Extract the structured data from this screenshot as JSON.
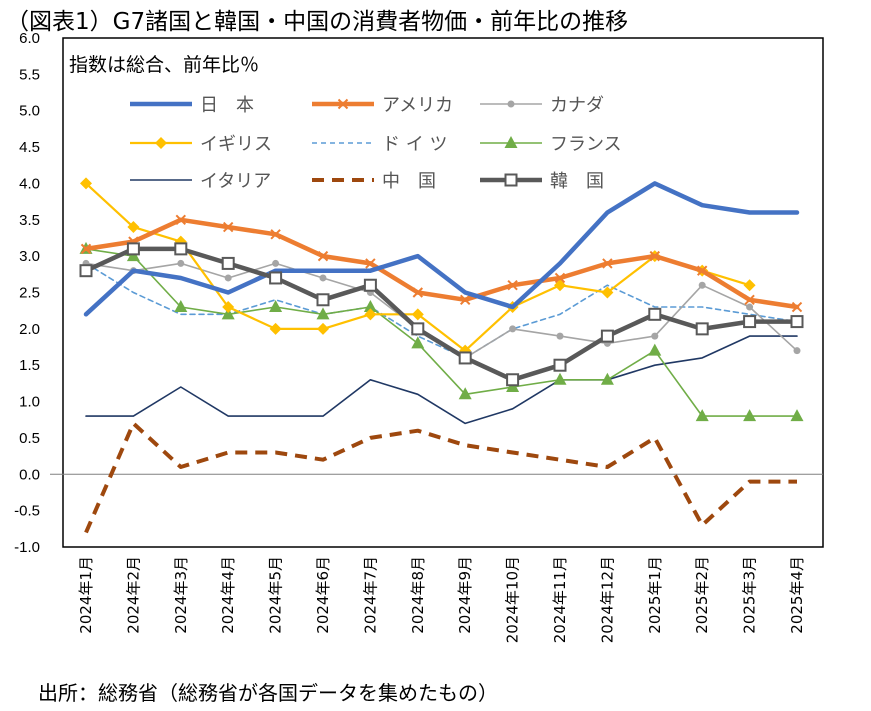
{
  "chart_data": {
    "type": "line",
    "title": "（図表1）G7諸国と韓国・中国の消費者物価・前年比の推移",
    "subtitle": "指数は総合、前年比％",
    "source": "出所：総務省（総務省が各国データを集めたもの）",
    "ylim": [
      -1.0,
      6.0
    ],
    "yticks": [
      "6.0",
      "5.5",
      "5.0",
      "4.5",
      "4.0",
      "3.5",
      "3.0",
      "2.5",
      "2.0",
      "1.5",
      "1.0",
      "0.5",
      "0.0",
      "-0.5",
      "-1.0"
    ],
    "categories": [
      "2024年1月",
      "2024年2月",
      "2024年3月",
      "2024年4月",
      "2024年5月",
      "2024年6月",
      "2024年7月",
      "2024年8月",
      "2024年9月",
      "2024年10月",
      "2024年11月",
      "2024年12月",
      "2025年1月",
      "2025年2月",
      "2025年3月",
      "2025年4月"
    ],
    "series": [
      {
        "name": "日　本",
        "color": "#4472C4",
        "style": "thick",
        "marker": "none",
        "values": [
          2.2,
          2.8,
          2.7,
          2.5,
          2.8,
          2.8,
          2.8,
          3.0,
          2.5,
          2.3,
          2.9,
          3.6,
          4.0,
          3.7,
          3.6,
          3.6
        ]
      },
      {
        "name": "アメリカ",
        "color": "#ED7D31",
        "style": "thick",
        "marker": "x",
        "values": [
          3.1,
          3.2,
          3.5,
          3.4,
          3.3,
          3.0,
          2.9,
          2.5,
          2.4,
          2.6,
          2.7,
          2.9,
          3.0,
          2.8,
          2.4,
          2.3
        ]
      },
      {
        "name": "カナダ",
        "color": "#A5A5A5",
        "style": "thin",
        "marker": "circle",
        "values": [
          2.9,
          2.8,
          2.9,
          2.7,
          2.9,
          2.7,
          2.5,
          2.0,
          1.6,
          2.0,
          1.9,
          1.8,
          1.9,
          2.6,
          2.3,
          1.7
        ]
      },
      {
        "name": "イギリス",
        "color": "#FFC000",
        "style": "medium",
        "marker": "diamond",
        "values": [
          4.0,
          3.4,
          3.2,
          2.3,
          2.0,
          2.0,
          2.2,
          2.2,
          1.7,
          2.3,
          2.6,
          2.5,
          3.0,
          2.8,
          2.6,
          null
        ]
      },
      {
        "name": "ド イ ツ",
        "color": "#5B9BD5",
        "style": "dashed",
        "marker": "none",
        "values": [
          2.9,
          2.5,
          2.2,
          2.2,
          2.4,
          2.2,
          2.3,
          1.9,
          1.6,
          2.0,
          2.2,
          2.6,
          2.3,
          2.3,
          2.2,
          2.1
        ]
      },
      {
        "name": "フランス",
        "color": "#70AD47",
        "style": "thin",
        "marker": "triangle",
        "values": [
          3.1,
          3.0,
          2.3,
          2.2,
          2.3,
          2.2,
          2.3,
          1.8,
          1.1,
          1.2,
          1.3,
          1.3,
          1.7,
          0.8,
          0.8,
          0.8
        ]
      },
      {
        "name": "イタリア",
        "color": "#203864",
        "style": "thin",
        "marker": "none",
        "values": [
          0.8,
          0.8,
          1.2,
          0.8,
          0.8,
          0.8,
          1.3,
          1.1,
          0.7,
          0.9,
          1.3,
          1.3,
          1.5,
          1.6,
          1.9,
          1.9
        ]
      },
      {
        "name": "中　国",
        "color": "#9E480E",
        "style": "thickdash",
        "marker": "none",
        "values": [
          -0.8,
          0.7,
          0.1,
          0.3,
          0.3,
          0.2,
          0.5,
          0.6,
          0.4,
          0.3,
          0.2,
          0.1,
          0.5,
          -0.7,
          -0.1,
          -0.1
        ]
      },
      {
        "name": "韓　国",
        "color": "#595959",
        "style": "thick",
        "marker": "square",
        "values": [
          2.8,
          3.1,
          3.1,
          2.9,
          2.7,
          2.4,
          2.6,
          2.0,
          1.6,
          1.3,
          1.5,
          1.9,
          2.2,
          2.0,
          2.1,
          2.1
        ]
      }
    ]
  }
}
